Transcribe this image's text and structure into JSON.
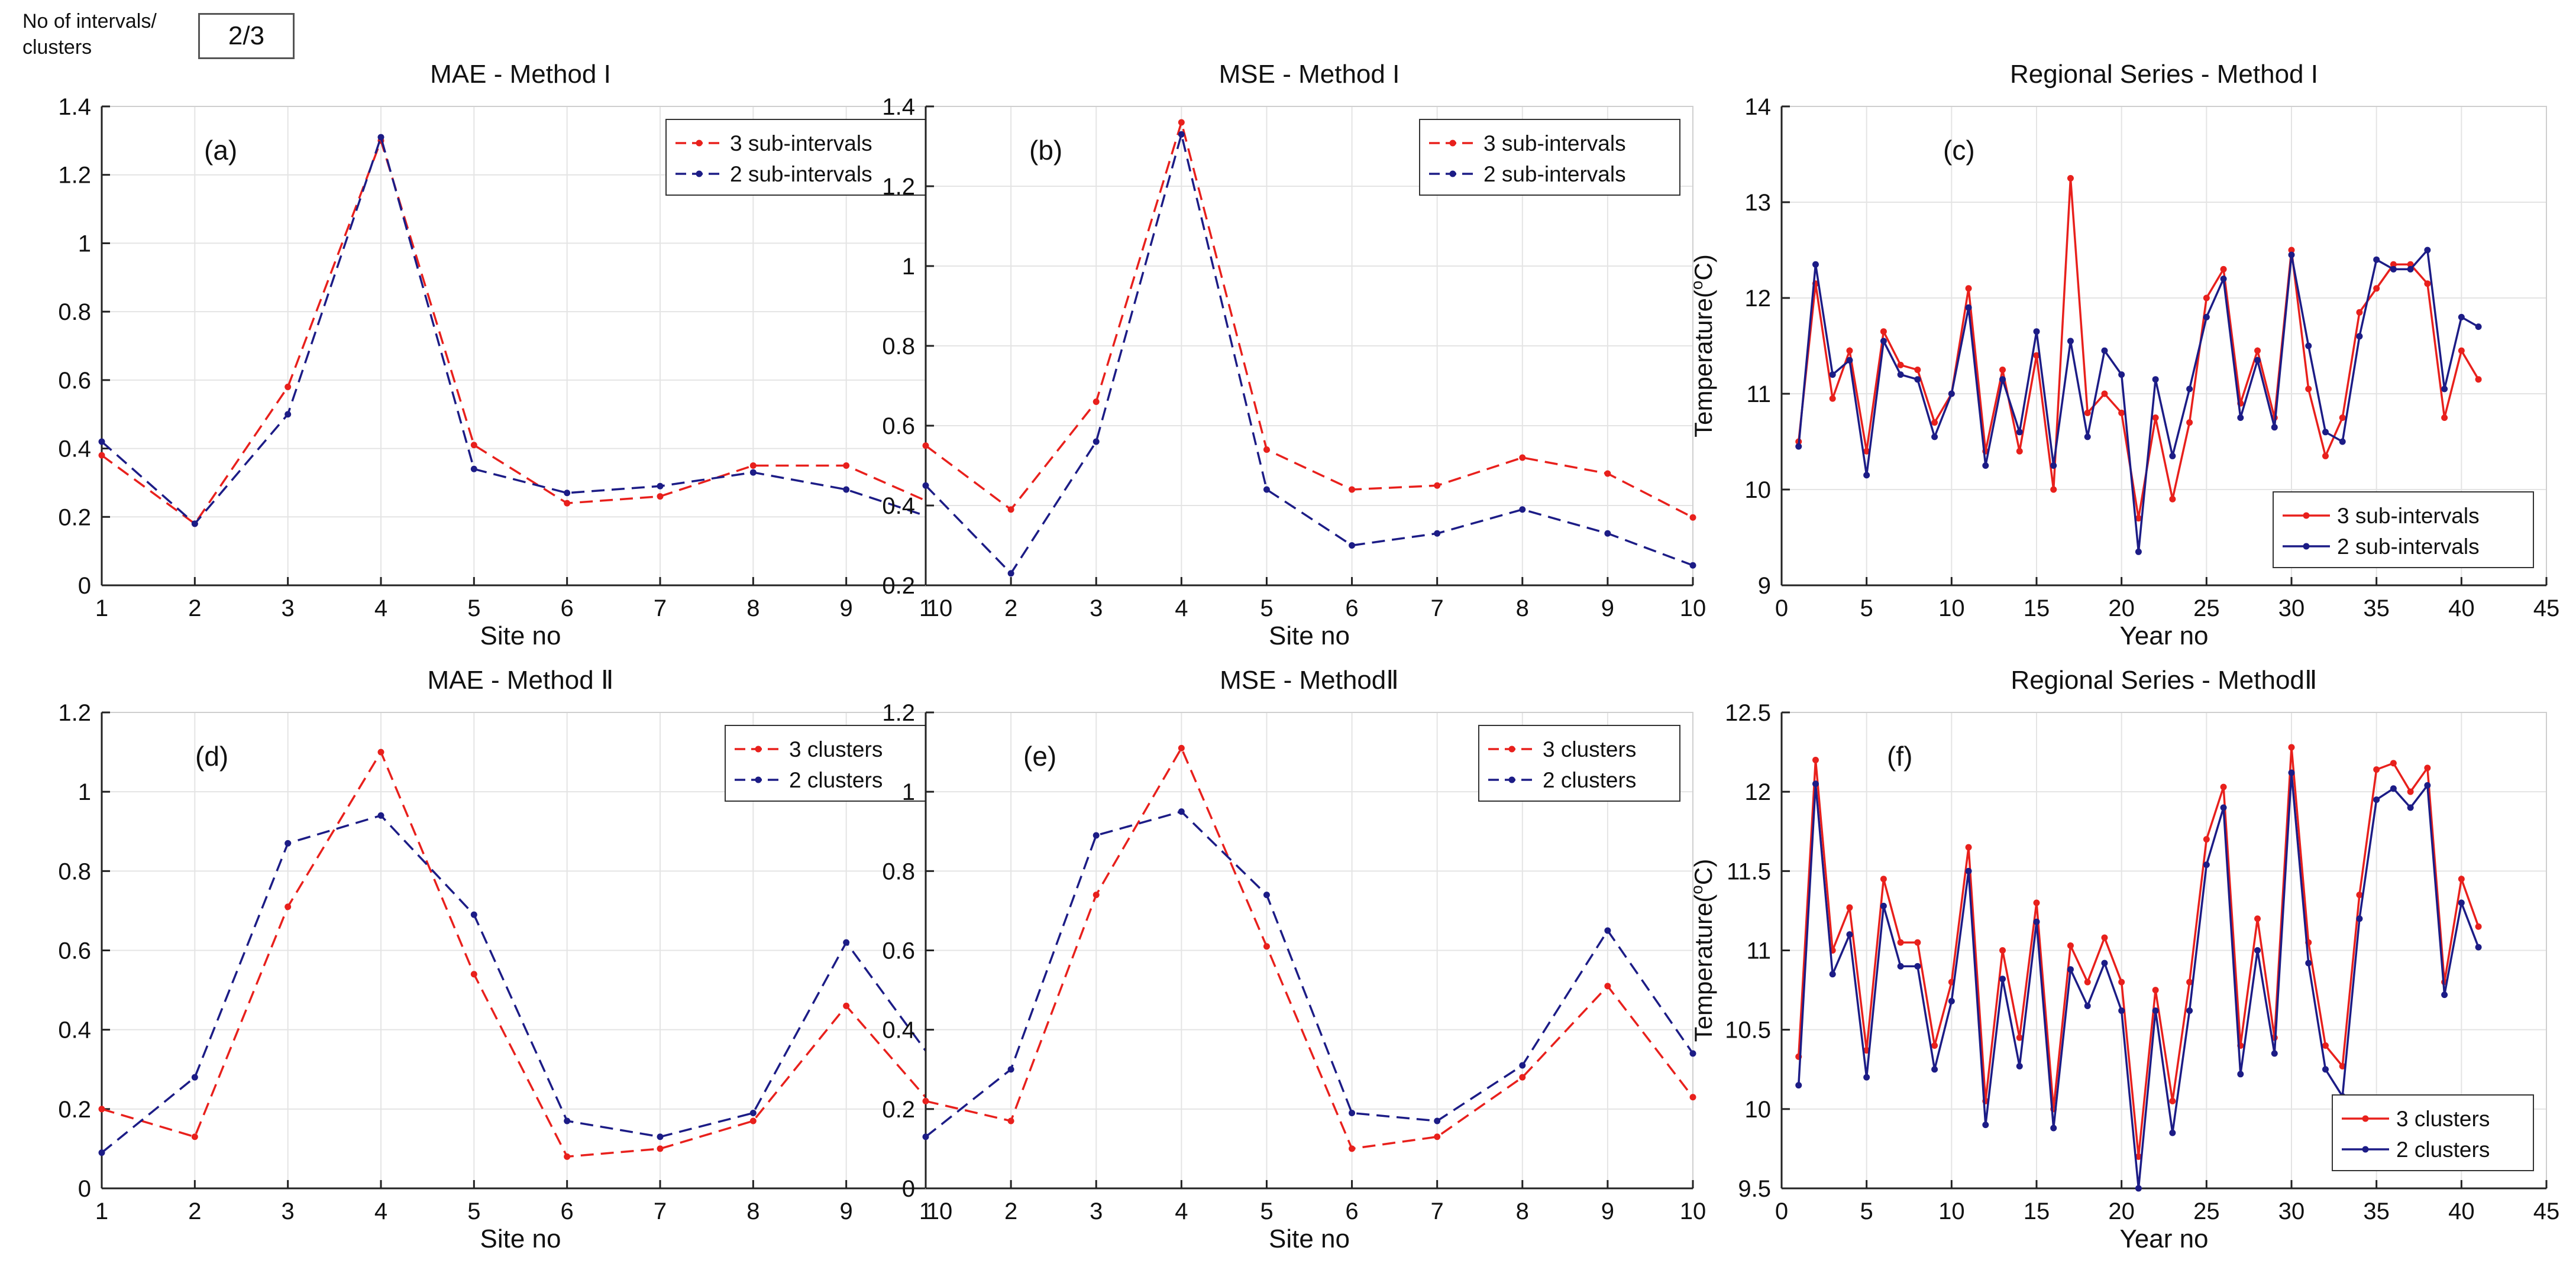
{
  "header": {
    "label": "No of intervals/ clusters",
    "value": "2/3"
  },
  "colors": {
    "red": "#e8201c",
    "blue": "#1c1c86",
    "grid": "#e4e4e4",
    "axis": "#222222"
  },
  "chart_data": [
    {
      "id": "a",
      "type": "line",
      "panel_label": "(a)",
      "title": "MAE - Method I",
      "xlabel": "Site no",
      "ylabel": "",
      "xlim": [
        1,
        10
      ],
      "ylim": [
        0,
        1.4
      ],
      "xticks": [
        1,
        2,
        3,
        4,
        5,
        6,
        7,
        8,
        9,
        10
      ],
      "yticks": [
        0,
        0.2,
        0.4,
        0.6,
        0.8,
        1,
        1.2,
        1.4
      ],
      "ytick_labels": [
        "0",
        "0.2",
        "0.4",
        "0.6",
        "0.8",
        "1",
        "1.2",
        "1.4"
      ],
      "legend_position": "top-right",
      "series": [
        {
          "name": "3 sub-intervals",
          "color": "red",
          "dash": true,
          "x": [
            1,
            2,
            3,
            4,
            5,
            6,
            7,
            8,
            9,
            10
          ],
          "values": [
            0.38,
            0.18,
            0.58,
            1.3,
            0.41,
            0.24,
            0.26,
            0.35,
            0.35,
            0.23
          ]
        },
        {
          "name": "2 sub-intervals",
          "color": "blue",
          "dash": true,
          "x": [
            1,
            2,
            3,
            4,
            5,
            6,
            7,
            8,
            9,
            10
          ],
          "values": [
            0.42,
            0.18,
            0.5,
            1.31,
            0.34,
            0.27,
            0.29,
            0.33,
            0.28,
            0.19
          ]
        }
      ]
    },
    {
      "id": "b",
      "type": "line",
      "panel_label": "(b)",
      "title": "MSE -  Method I",
      "xlabel": "Site no",
      "ylabel": "",
      "xlim": [
        1,
        10
      ],
      "ylim": [
        0.2,
        1.4
      ],
      "xticks": [
        1,
        2,
        3,
        4,
        5,
        6,
        7,
        8,
        9,
        10
      ],
      "yticks": [
        0.2,
        0.4,
        0.6,
        0.8,
        1,
        1.2,
        1.4
      ],
      "ytick_labels": [
        "0.2",
        "0.4",
        "0.6",
        "0.8",
        "1",
        "1.2",
        "1.4"
      ],
      "legend_position": "top-right",
      "series": [
        {
          "name": "3 sub-intervals",
          "color": "red",
          "dash": true,
          "x": [
            1,
            2,
            3,
            4,
            5,
            6,
            7,
            8,
            9,
            10
          ],
          "values": [
            0.55,
            0.39,
            0.66,
            1.36,
            0.54,
            0.44,
            0.45,
            0.52,
            0.48,
            0.37
          ]
        },
        {
          "name": "2 sub-intervals",
          "color": "blue",
          "dash": true,
          "x": [
            1,
            2,
            3,
            4,
            5,
            6,
            7,
            8,
            9,
            10
          ],
          "values": [
            0.45,
            0.23,
            0.56,
            1.33,
            0.44,
            0.3,
            0.33,
            0.39,
            0.33,
            0.25
          ]
        }
      ]
    },
    {
      "id": "c",
      "type": "line",
      "panel_label": "(c)",
      "title": "Regional Series - Method I",
      "xlabel": "Year no",
      "ylabel": "Temperature(",
      "ylabel_sup": "o",
      "ylabel_tail": "C)",
      "xlim": [
        0,
        45
      ],
      "ylim": [
        9,
        14
      ],
      "xticks": [
        0,
        5,
        10,
        15,
        20,
        25,
        30,
        35,
        40,
        45
      ],
      "yticks": [
        9,
        10,
        11,
        12,
        13,
        14
      ],
      "ytick_labels": [
        "9",
        "10",
        "11",
        "12",
        "13",
        "14"
      ],
      "legend_position": "bottom-right",
      "series": [
        {
          "name": "3 sub-intervals",
          "color": "red",
          "dash": false,
          "x": [
            1,
            2,
            3,
            4,
            5,
            6,
            7,
            8,
            9,
            10,
            11,
            12,
            13,
            14,
            15,
            16,
            17,
            18,
            19,
            20,
            21,
            22,
            23,
            24,
            25,
            26,
            27,
            28,
            29,
            30,
            31,
            32,
            33,
            34,
            35,
            36,
            37,
            38,
            39,
            40,
            41
          ],
          "values": [
            10.5,
            12.15,
            10.95,
            11.45,
            10.4,
            11.65,
            11.3,
            11.25,
            10.7,
            11.0,
            12.1,
            10.4,
            11.25,
            10.4,
            11.4,
            10.0,
            13.25,
            10.8,
            11.0,
            10.8,
            9.7,
            10.75,
            9.9,
            10.7,
            12.0,
            12.3,
            10.9,
            11.45,
            10.75,
            12.5,
            11.05,
            10.35,
            10.75,
            11.85,
            12.1,
            12.35,
            12.35,
            12.15,
            10.75,
            11.45,
            11.15
          ]
        },
        {
          "name": "2 sub-intervals",
          "color": "blue",
          "dash": false,
          "x": [
            1,
            2,
            3,
            4,
            5,
            6,
            7,
            8,
            9,
            10,
            11,
            12,
            13,
            14,
            15,
            16,
            17,
            18,
            19,
            20,
            21,
            22,
            23,
            24,
            25,
            26,
            27,
            28,
            29,
            30,
            31,
            32,
            33,
            34,
            35,
            36,
            37,
            38,
            39,
            40,
            41
          ],
          "values": [
            10.45,
            12.35,
            11.2,
            11.35,
            10.15,
            11.55,
            11.2,
            11.15,
            10.55,
            11.0,
            11.9,
            10.25,
            11.15,
            10.6,
            11.65,
            10.25,
            11.55,
            10.55,
            11.45,
            11.2,
            9.35,
            11.15,
            10.35,
            11.05,
            11.8,
            12.2,
            10.75,
            11.35,
            10.65,
            12.45,
            11.5,
            10.6,
            10.5,
            11.6,
            12.4,
            12.3,
            12.3,
            12.5,
            11.05,
            11.8,
            11.7
          ]
        }
      ]
    },
    {
      "id": "d",
      "type": "line",
      "panel_label": "(d)",
      "title": "MAE - Method Ⅱ",
      "xlabel": "Site no",
      "ylabel": "",
      "xlim": [
        1,
        10
      ],
      "ylim": [
        0,
        1.2
      ],
      "xticks": [
        1,
        2,
        3,
        4,
        5,
        6,
        7,
        8,
        9,
        10
      ],
      "yticks": [
        0,
        0.2,
        0.4,
        0.6,
        0.8,
        1,
        1.2
      ],
      "ytick_labels": [
        "0",
        "0.2",
        "0.4",
        "0.6",
        "0.8",
        "1",
        "1.2"
      ],
      "legend_position": "top-right",
      "series": [
        {
          "name": "3 clusters",
          "color": "red",
          "dash": true,
          "x": [
            1,
            2,
            3,
            4,
            5,
            6,
            7,
            8,
            9,
            10
          ],
          "values": [
            0.2,
            0.13,
            0.71,
            1.1,
            0.54,
            0.08,
            0.1,
            0.17,
            0.46,
            0.19
          ]
        },
        {
          "name": "2 clusters",
          "color": "blue",
          "dash": true,
          "x": [
            1,
            2,
            3,
            4,
            5,
            6,
            7,
            8,
            9,
            10
          ],
          "values": [
            0.09,
            0.28,
            0.87,
            0.94,
            0.69,
            0.17,
            0.13,
            0.19,
            0.62,
            0.3
          ]
        }
      ]
    },
    {
      "id": "e",
      "type": "line",
      "panel_label": "(e)",
      "title": "MSE -  MethodⅡ",
      "xlabel": "Site no",
      "ylabel": "",
      "xlim": [
        1,
        10
      ],
      "ylim": [
        0,
        1.2
      ],
      "xticks": [
        1,
        2,
        3,
        4,
        5,
        6,
        7,
        8,
        9,
        10
      ],
      "yticks": [
        0,
        0.2,
        0.4,
        0.6,
        0.8,
        1,
        1.2
      ],
      "ytick_labels": [
        "0",
        "0.2",
        "0.4",
        "0.6",
        "0.8",
        "1",
        "1.2"
      ],
      "legend_position": "top-right",
      "series": [
        {
          "name": "3 clusters",
          "color": "red",
          "dash": true,
          "x": [
            1,
            2,
            3,
            4,
            5,
            6,
            7,
            8,
            9,
            10
          ],
          "values": [
            0.22,
            0.17,
            0.74,
            1.11,
            0.61,
            0.1,
            0.13,
            0.28,
            0.51,
            0.23
          ]
        },
        {
          "name": "2 clusters",
          "color": "blue",
          "dash": true,
          "x": [
            1,
            2,
            3,
            4,
            5,
            6,
            7,
            8,
            9,
            10
          ],
          "values": [
            0.13,
            0.3,
            0.89,
            0.95,
            0.74,
            0.19,
            0.17,
            0.31,
            0.65,
            0.34
          ]
        }
      ]
    },
    {
      "id": "f",
      "type": "line",
      "panel_label": "(f)",
      "title": "Regional Series - MethodⅡ",
      "xlabel": "Year no",
      "ylabel": "Temperature(",
      "ylabel_sup": "o",
      "ylabel_tail": "C)",
      "xlim": [
        0,
        45
      ],
      "ylim": [
        9.5,
        12.5
      ],
      "xticks": [
        0,
        5,
        10,
        15,
        20,
        25,
        30,
        35,
        40,
        45
      ],
      "yticks": [
        9.5,
        10,
        10.5,
        11,
        11.5,
        12,
        12.5
      ],
      "ytick_labels": [
        "9.5",
        "10",
        "10.5",
        "11",
        "11.5",
        "12",
        "12.5"
      ],
      "legend_position": "bottom-right",
      "series": [
        {
          "name": "3 clusters",
          "color": "red",
          "dash": false,
          "x": [
            1,
            2,
            3,
            4,
            5,
            6,
            7,
            8,
            9,
            10,
            11,
            12,
            13,
            14,
            15,
            16,
            17,
            18,
            19,
            20,
            21,
            22,
            23,
            24,
            25,
            26,
            27,
            28,
            29,
            30,
            31,
            32,
            33,
            34,
            35,
            36,
            37,
            38,
            39,
            40,
            41
          ],
          "values": [
            10.33,
            12.2,
            11.0,
            11.27,
            10.37,
            11.45,
            11.05,
            11.05,
            10.4,
            10.8,
            11.65,
            10.05,
            11.0,
            10.45,
            11.3,
            10.0,
            11.03,
            10.8,
            11.08,
            10.8,
            9.7,
            10.75,
            10.05,
            10.8,
            11.7,
            12.03,
            10.4,
            11.2,
            10.45,
            12.28,
            11.05,
            10.4,
            10.27,
            11.35,
            12.14,
            12.18,
            12.0,
            12.15,
            10.8,
            11.45,
            11.15
          ]
        },
        {
          "name": "2 clusters",
          "color": "blue",
          "dash": false,
          "x": [
            1,
            2,
            3,
            4,
            5,
            6,
            7,
            8,
            9,
            10,
            11,
            12,
            13,
            14,
            15,
            16,
            17,
            18,
            19,
            20,
            21,
            22,
            23,
            24,
            25,
            26,
            27,
            28,
            29,
            30,
            31,
            32,
            33,
            34,
            35,
            36,
            37,
            38,
            39,
            40,
            41
          ],
          "values": [
            10.15,
            12.05,
            10.85,
            11.1,
            10.2,
            11.28,
            10.9,
            10.9,
            10.25,
            10.68,
            11.5,
            9.9,
            10.82,
            10.27,
            11.18,
            9.88,
            10.88,
            10.65,
            10.92,
            10.62,
            9.5,
            10.62,
            9.85,
            10.62,
            11.54,
            11.9,
            10.22,
            11.0,
            10.35,
            12.12,
            10.92,
            10.25,
            10.08,
            11.2,
            11.95,
            12.02,
            11.9,
            12.04,
            10.72,
            11.3,
            11.02
          ]
        }
      ]
    }
  ]
}
